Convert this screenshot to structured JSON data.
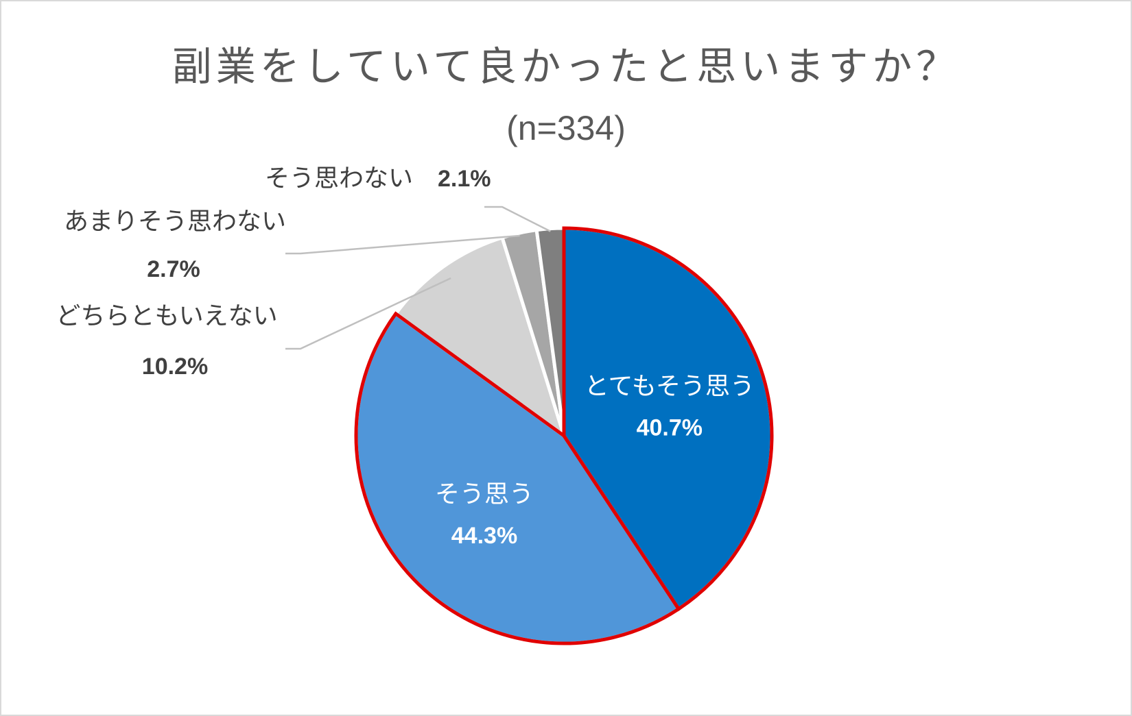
{
  "chart_data": {
    "type": "pie",
    "title": "副業をしていて良かったと思いますか？",
    "subtitle": "(n=334)",
    "slices": [
      {
        "name": "とてもそう思う",
        "value": 40.7,
        "label": "40.7%",
        "color": "#0070c0",
        "highlight": true
      },
      {
        "name": "そう思う",
        "value": 44.3,
        "label": "44.3%",
        "color": "#5096d9",
        "highlight": true
      },
      {
        "name": "どちらともいえない",
        "value": 10.2,
        "label": "10.2%",
        "color": "#d3d3d3",
        "highlight": false
      },
      {
        "name": "あまりそう思わない",
        "value": 2.7,
        "label": "2.7%",
        "color": "#a6a6a6",
        "highlight": false
      },
      {
        "name": "そう思わない",
        "value": 2.1,
        "label": "2.1%",
        "color": "#7f7f7f",
        "highlight": false
      }
    ],
    "highlight_color": "#e00000",
    "start_angle": "12 o'clock",
    "direction": "clockwise"
  }
}
